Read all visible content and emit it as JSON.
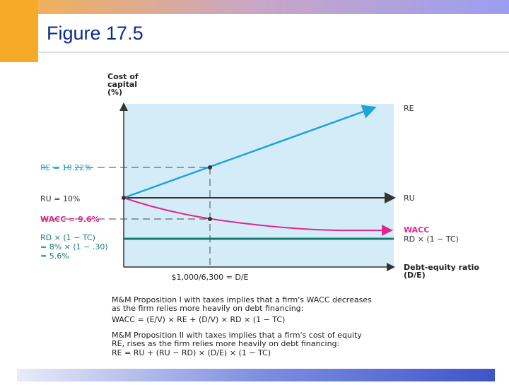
{
  "header": {
    "title": "Figure 17.5"
  },
  "diagram": {
    "y_axis_label": [
      "Cost of",
      "capital",
      "(%)"
    ],
    "left_labels": {
      "re": "RE = 10.22%",
      "ru": "RU = 10%",
      "wacc": "WACC = 9.6%",
      "rd": [
        "RD × (1 − TC)",
        "= 8% × (1 − .30)",
        "= 5.6%"
      ]
    },
    "right_labels": {
      "re": "RE",
      "ru": "RU",
      "wacc": "WACC",
      "rd": "RD × (1 − TC)",
      "x_axis": [
        "Debt-equity ratio",
        "(D/E)"
      ]
    },
    "x_marker_label": "$1,000/6,300 = D/E",
    "notes": [
      "M&M Proposition I with taxes implies that a firm's WACC decreases",
      "as the firm relies more heavily on debt financing:",
      "WACC = (E/V) × RE + (D/V) × RD × (1 − TC)",
      "M&M Proposition II with taxes implies that a firm's cost of equity",
      "RE, rises as the firm relies more heavily on debt financing:",
      "RE = RU + (RU − RD) × (D/E) × (1 − TC)"
    ]
  }
}
